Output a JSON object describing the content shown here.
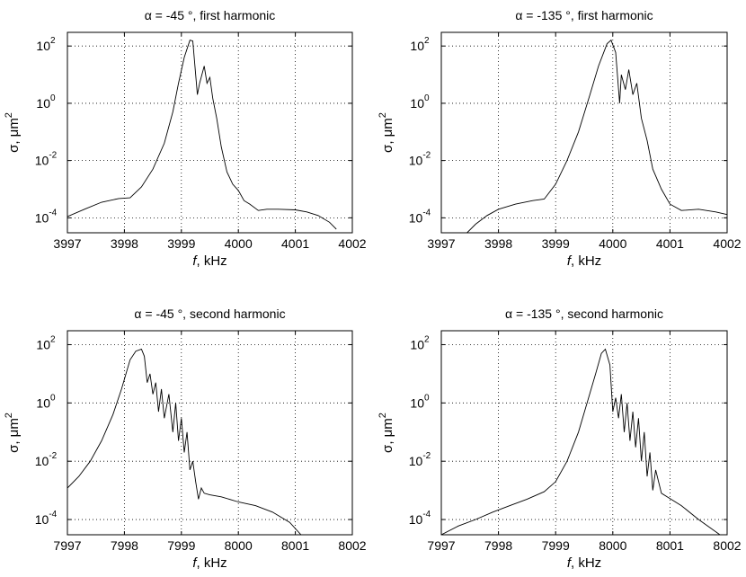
{
  "chart_data": [
    {
      "type": "line",
      "title": "α = -45 °, first harmonic",
      "xlabel": "f, kHz",
      "ylabel": "σ, μm2",
      "y_scale": "log",
      "grid": true,
      "xlim": [
        3997,
        4002
      ],
      "ylim": [
        3e-05,
        300
      ],
      "xticks": [
        "3997",
        "3998",
        "3999",
        "4000",
        "4001",
        "4002"
      ],
      "ytick_exponents": [
        "-4",
        "-2",
        "0",
        "2"
      ],
      "series": [
        {
          "x": [
            3997,
            3997.3,
            3997.6,
            3997.9,
            3998.1,
            3998.3,
            3998.5,
            3998.7,
            3998.85,
            3998.95,
            3999.05,
            3999.15,
            3999.2,
            3999.28,
            3999.32,
            3999.4,
            3999.45,
            3999.5,
            3999.55,
            3999.62,
            3999.7,
            3999.8,
            3999.9,
            4000.0,
            4000.1,
            4000.2,
            4000.35,
            4000.5,
            4000.7,
            4001.0,
            4001.2,
            4001.4,
            4001.6,
            4001.72
          ],
          "y": [
            0.00011,
            0.0002,
            0.00035,
            0.00047,
            0.0005,
            0.0012,
            0.005,
            0.04,
            0.5,
            5,
            40,
            160,
            150,
            2,
            5,
            20,
            5,
            8,
            1.5,
            0.3,
            0.03,
            0.004,
            0.0015,
            0.0009,
            0.0004,
            0.0003,
            0.00018,
            0.0002,
            0.0002,
            0.00019,
            0.00016,
            0.00012,
            7e-05,
            4e-05
          ]
        }
      ]
    },
    {
      "type": "line",
      "title": "α = -135 °, first harmonic",
      "xlabel": "f, kHz",
      "ylabel": "σ, μm2",
      "y_scale": "log",
      "grid": true,
      "xlim": [
        3997,
        4002
      ],
      "ylim": [
        3e-05,
        300
      ],
      "xticks": [
        "3997",
        "3998",
        "3999",
        "4000",
        "4001",
        "4002"
      ],
      "ytick_exponents": [
        "-4",
        "-2",
        "0",
        "2"
      ],
      "series": [
        {
          "x": [
            3997.45,
            3997.6,
            3997.8,
            3998.0,
            3998.3,
            3998.6,
            3998.8,
            3999.0,
            3999.2,
            3999.4,
            3999.6,
            3999.75,
            3999.9,
            3999.97,
            4000.05,
            4000.12,
            4000.15,
            4000.22,
            4000.28,
            4000.35,
            4000.42,
            4000.5,
            4000.6,
            4000.7,
            4000.85,
            4001.0,
            4001.2,
            4001.5,
            4001.8,
            4002
          ],
          "y": [
            3e-05,
            6e-05,
            0.00012,
            0.0002,
            0.0003,
            0.0004,
            0.00045,
            0.0015,
            0.01,
            0.1,
            2,
            20,
            120,
            160,
            60,
            1,
            10,
            3,
            15,
            2,
            5,
            0.3,
            0.05,
            0.005,
            0.001,
            0.0003,
            0.00018,
            0.0002,
            0.00016,
            0.00013
          ]
        }
      ]
    },
    {
      "type": "line",
      "title": "α = -45 °, second harmonic",
      "xlabel": "f, kHz",
      "ylabel": "σ, μm2",
      "y_scale": "log",
      "grid": true,
      "xlim": [
        7997,
        8002
      ],
      "ylim": [
        3e-05,
        300
      ],
      "xticks": [
        "7997",
        "7998",
        "7999",
        "8000",
        "8001",
        "8002"
      ],
      "ytick_exponents": [
        "-4",
        "-2",
        "0",
        "2"
      ],
      "series": [
        {
          "x": [
            7997,
            7997.2,
            7997.4,
            7997.6,
            7997.8,
            7997.95,
            7998.1,
            7998.2,
            7998.3,
            7998.35,
            7998.4,
            7998.45,
            7998.5,
            7998.55,
            7998.6,
            7998.65,
            7998.7,
            7998.78,
            7998.85,
            7998.9,
            7998.95,
            7999.0,
            7999.05,
            7999.1,
            7999.15,
            7999.2,
            7999.25,
            7999.3,
            7999.35,
            7999.4,
            7999.5,
            7999.7,
            8000.0,
            8000.3,
            8000.6,
            8000.9,
            8001.1
          ],
          "y": [
            0.0012,
            0.003,
            0.01,
            0.05,
            0.4,
            3,
            30,
            60,
            70,
            40,
            5,
            10,
            2,
            5,
            0.5,
            3,
            0.3,
            2,
            0.1,
            1,
            0.05,
            0.3,
            0.02,
            0.1,
            0.005,
            0.01,
            0.002,
            0.0005,
            0.0012,
            0.0008,
            0.0007,
            0.0006,
            0.0004,
            0.0003,
            0.00018,
            8e-05,
            3e-05
          ]
        }
      ]
    },
    {
      "type": "line",
      "title": "α = -135 °, second harmonic",
      "xlabel": "f, kHz",
      "ylabel": "σ, μm2",
      "y_scale": "log",
      "grid": true,
      "xlim": [
        7997,
        8002
      ],
      "ylim": [
        3e-05,
        300
      ],
      "xticks": [
        "7997",
        "7998",
        "7999",
        "8000",
        "8001",
        "8002"
      ],
      "ytick_exponents": [
        "-4",
        "-2",
        "0",
        "2"
      ],
      "series": [
        {
          "x": [
            7997,
            7997.3,
            7997.6,
            7997.9,
            7998.2,
            7998.5,
            7998.8,
            7999.0,
            7999.2,
            7999.4,
            7999.55,
            7999.7,
            7999.8,
            7999.87,
            7999.95,
            8000.0,
            8000.05,
            8000.1,
            8000.15,
            8000.2,
            8000.25,
            8000.3,
            8000.35,
            8000.4,
            8000.45,
            8000.5,
            8000.55,
            8000.6,
            8000.65,
            8000.7,
            8000.75,
            8000.8,
            8000.85,
            8000.95,
            8001.2,
            8001.5,
            8002
          ],
          "y": [
            3e-05,
            6e-05,
            0.0001,
            0.00018,
            0.0003,
            0.0005,
            0.0009,
            0.002,
            0.01,
            0.1,
            1,
            10,
            50,
            70,
            20,
            0.5,
            1.5,
            0.3,
            2,
            0.1,
            1,
            0.05,
            0.5,
            0.03,
            0.3,
            0.01,
            0.1,
            0.003,
            0.02,
            0.001,
            0.005,
            0.002,
            0.0008,
            0.0006,
            0.0003,
            0.0001,
            2e-05
          ]
        }
      ]
    }
  ]
}
